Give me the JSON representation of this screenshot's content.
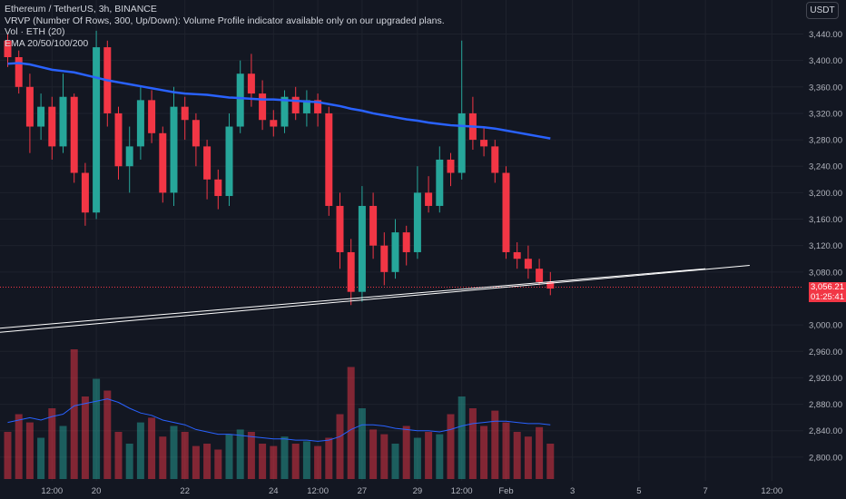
{
  "legend": {
    "title": "Ethereum / TetherUS, 3h, BINANCE",
    "vrvp": "VRVP (Number Of Rows, 300, Up/Down): Volume Profile indicator available only on our upgraded plans.",
    "vol": "Vol · ETH (20)",
    "ema": "EMA 20/50/100/200"
  },
  "currency_button": "USDT",
  "last_price": "3,056.21",
  "countdown": "01:25:41",
  "colors": {
    "up": "#26a69a",
    "down": "#f23645",
    "ema": "#2962ff",
    "volume_ma": "#2962ff",
    "trendline": "#ffffff",
    "background": "#131722"
  },
  "chart_data": {
    "type": "candlestick",
    "title": "Ethereum / TetherUS, 3h, BINANCE",
    "y_ticks": [
      "3,440.00",
      "3,400.00",
      "3,360.00",
      "3,320.00",
      "3,280.00",
      "3,240.00",
      "3,200.00",
      "3,160.00",
      "3,120.00",
      "3,080.00",
      "3,000.00",
      "2,960.00",
      "2,920.00",
      "2,880.00",
      "2,840.00",
      "2,800.00"
    ],
    "y_range": [
      2780,
      3465
    ],
    "x_ticks": [
      "12:00",
      "20",
      "22",
      "24",
      "12:00",
      "27",
      "29",
      "12:00",
      "Feb",
      "3",
      "5",
      "7",
      "12:00"
    ],
    "x_tick_values": [
      4,
      8,
      16,
      24,
      28,
      32,
      37,
      41,
      45,
      51,
      57,
      63,
      69
    ],
    "candles": [
      [
        3430,
        3405,
        3440,
        3390
      ],
      [
        3405,
        3360,
        3415,
        3350
      ],
      [
        3360,
        3300,
        3380,
        3260
      ],
      [
        3300,
        3330,
        3350,
        3280
      ],
      [
        3330,
        3270,
        3345,
        3250
      ],
      [
        3270,
        3345,
        3380,
        3260
      ],
      [
        3345,
        3230,
        3350,
        3215
      ],
      [
        3230,
        3170,
        3245,
        3150
      ],
      [
        3170,
        3420,
        3445,
        3160
      ],
      [
        3420,
        3320,
        3430,
        3300
      ],
      [
        3320,
        3240,
        3330,
        3220
      ],
      [
        3240,
        3270,
        3300,
        3200
      ],
      [
        3270,
        3340,
        3360,
        3250
      ],
      [
        3340,
        3290,
        3355,
        3275
      ],
      [
        3290,
        3200,
        3300,
        3185
      ],
      [
        3200,
        3330,
        3360,
        3180
      ],
      [
        3330,
        3310,
        3345,
        3280
      ],
      [
        3310,
        3270,
        3320,
        3240
      ],
      [
        3270,
        3220,
        3280,
        3190
      ],
      [
        3220,
        3195,
        3235,
        3175
      ],
      [
        3195,
        3300,
        3320,
        3180
      ],
      [
        3300,
        3380,
        3400,
        3290
      ],
      [
        3380,
        3350,
        3410,
        3330
      ],
      [
        3350,
        3310,
        3370,
        3295
      ],
      [
        3310,
        3300,
        3325,
        3285
      ],
      [
        3300,
        3345,
        3355,
        3290
      ],
      [
        3345,
        3320,
        3360,
        3310
      ],
      [
        3320,
        3340,
        3355,
        3300
      ],
      [
        3340,
        3320,
        3350,
        3300
      ],
      [
        3320,
        3180,
        3330,
        3165
      ],
      [
        3180,
        3110,
        3200,
        3085
      ],
      [
        3110,
        3050,
        3130,
        3030
      ],
      [
        3050,
        3180,
        3210,
        3035
      ],
      [
        3180,
        3120,
        3200,
        3100
      ],
      [
        3120,
        3080,
        3140,
        3060
      ],
      [
        3080,
        3140,
        3160,
        3070
      ],
      [
        3140,
        3110,
        3150,
        3090
      ],
      [
        3110,
        3200,
        3240,
        3100
      ],
      [
        3200,
        3180,
        3225,
        3170
      ],
      [
        3180,
        3250,
        3270,
        3170
      ],
      [
        3250,
        3230,
        3260,
        3210
      ],
      [
        3230,
        3320,
        3430,
        3220
      ],
      [
        3320,
        3280,
        3345,
        3265
      ],
      [
        3280,
        3270,
        3300,
        3255
      ],
      [
        3270,
        3230,
        3280,
        3215
      ],
      [
        3230,
        3110,
        3240,
        3100
      ],
      [
        3110,
        3100,
        3125,
        3085
      ],
      [
        3100,
        3085,
        3120,
        3070
      ],
      [
        3085,
        3065,
        3100,
        3060
      ],
      [
        3065,
        3055,
        3080,
        3045
      ]
    ],
    "volumes": [
      40,
      55,
      48,
      35,
      60,
      45,
      110,
      70,
      85,
      75,
      40,
      30,
      48,
      52,
      36,
      45,
      40,
      28,
      30,
      25,
      38,
      42,
      40,
      30,
      28,
      36,
      30,
      32,
      28,
      35,
      55,
      95,
      60,
      42,
      38,
      30,
      45,
      35,
      40,
      38,
      55,
      70,
      60,
      45,
      58,
      48,
      40,
      36,
      44,
      30
    ],
    "ema_series": [
      3395,
      3396,
      3394,
      3390,
      3386,
      3384,
      3382,
      3378,
      3374,
      3370,
      3367,
      3364,
      3361,
      3358,
      3355,
      3352,
      3350,
      3349,
      3348,
      3346,
      3344,
      3343,
      3342,
      3341,
      3341,
      3340,
      3339,
      3338,
      3337,
      3334,
      3331,
      3327,
      3324,
      3320,
      3317,
      3314,
      3311,
      3309,
      3306,
      3304,
      3302,
      3301,
      3300,
      3299,
      3297,
      3294,
      3291,
      3288,
      3285,
      3282
    ],
    "volume_ma": [
      48,
      50,
      52,
      50,
      53,
      55,
      62,
      64,
      66,
      68,
      65,
      60,
      56,
      54,
      50,
      48,
      46,
      42,
      40,
      38,
      38,
      37,
      36,
      35,
      34,
      34,
      33,
      33,
      32,
      33,
      36,
      42,
      46,
      46,
      45,
      43,
      42,
      41,
      41,
      40,
      42,
      45,
      47,
      48,
      49,
      49,
      48,
      47,
      47,
      46
    ],
    "trendlines": [
      {
        "from": [
          -22,
          2965
        ],
        "to": [
          63,
          3085
        ]
      },
      {
        "from": [
          -22,
          2957
        ],
        "to": [
          67,
          3090
        ]
      }
    ]
  }
}
